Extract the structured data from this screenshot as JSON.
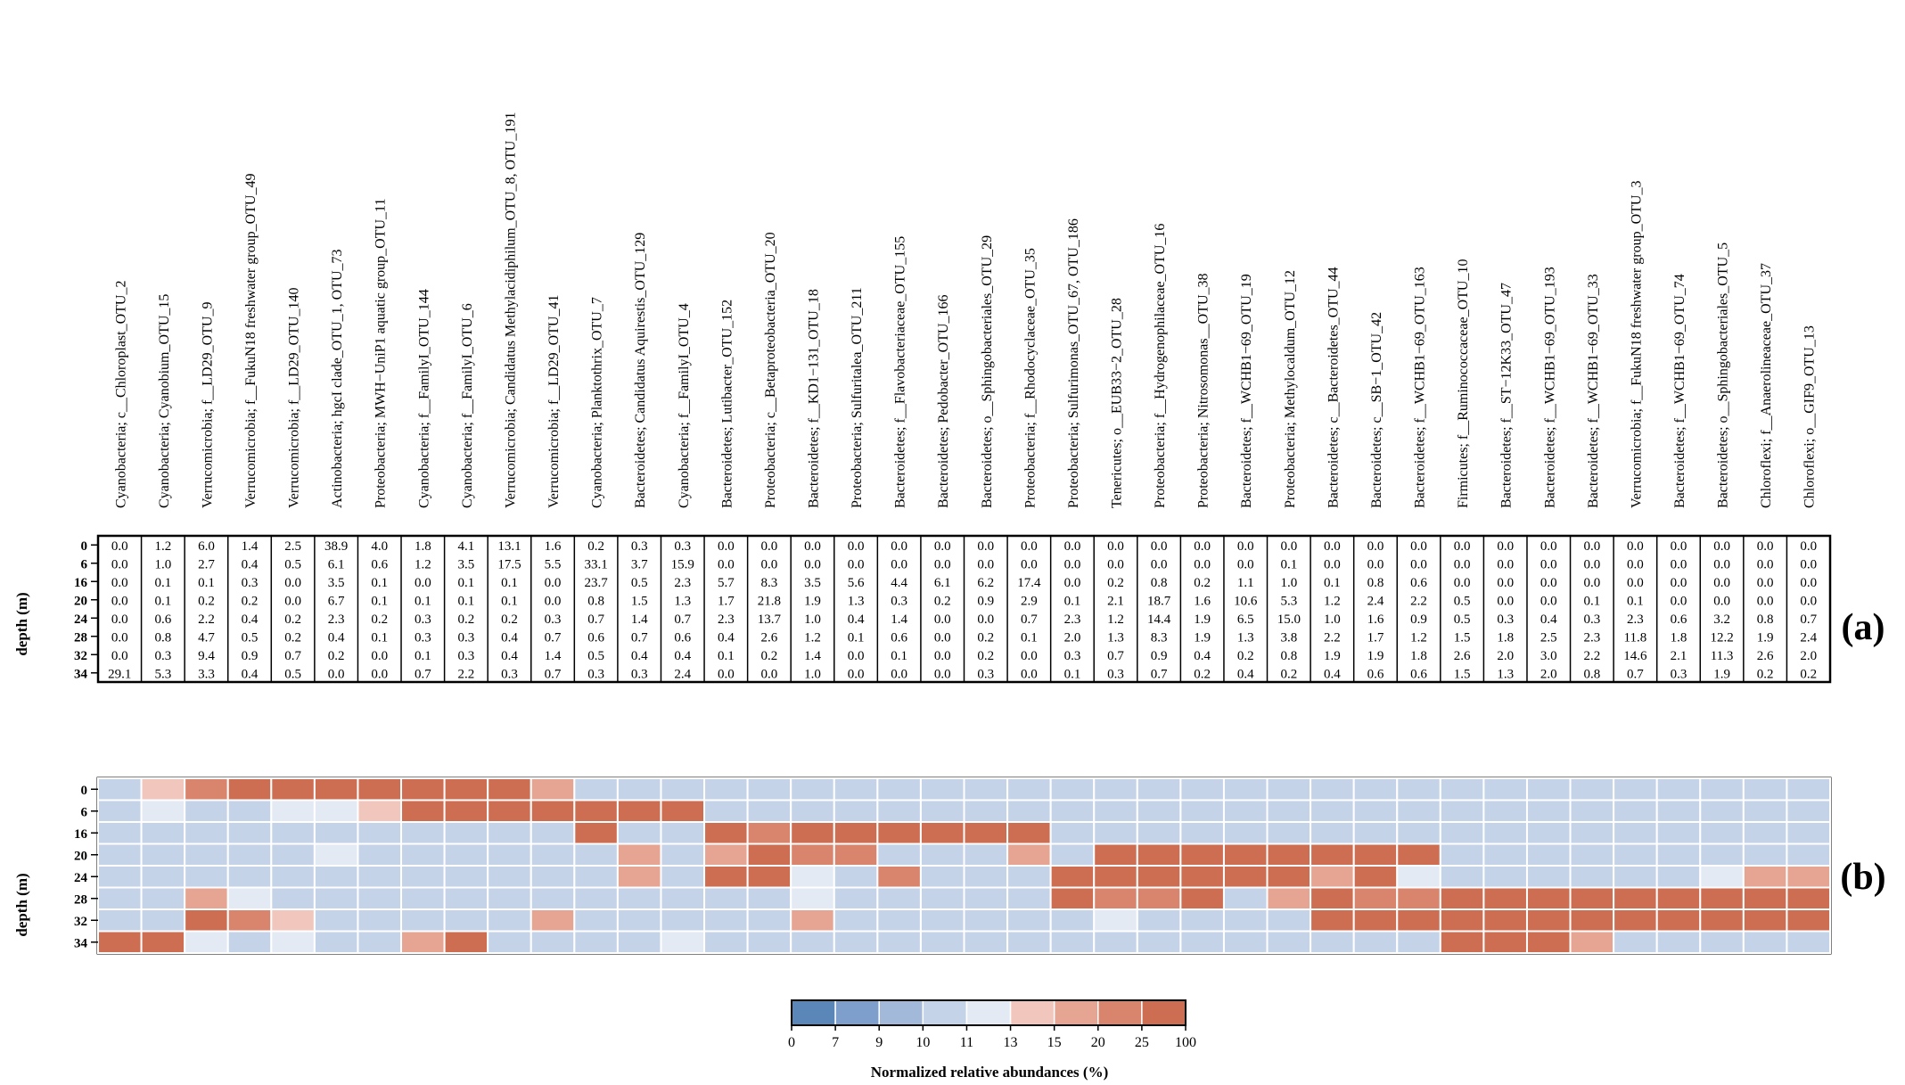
{
  "chart_data": [
    {
      "type": "table",
      "panel_label": "(a)",
      "ylabel": "depth (m)",
      "rows": [
        "0",
        "6",
        "16",
        "20",
        "24",
        "28",
        "32",
        "34"
      ],
      "columns": [
        "Cyanobacteria; c__Chloroplast_OTU_2",
        "Cyanobacteria; Cyanobium_OTU_15",
        "Verrucomicrobia; f__LD29_OTU_9",
        "Verrucomicrobia; f__FukuN18 freshwater group_OTU_49",
        "Verrucomicrobia; f__LD29_OTU_140",
        "Actinobacteria; hgcI clade_OTU_1, OTU_73",
        "Proteobacteria; MWH−UniP1 aquatic group_OTU_11",
        "Cyanobacteria; f__FamilyI_OTU_144",
        "Cyanobacteria; f__FamilyI_OTU_6",
        "Verrucomicrobia; Candidatus Methylacidiphilum_OTU_8, OTU_191",
        "Verrucomicrobia; f__LD29_OTU_41",
        "Cyanobacteria; Planktothrix_OTU_7",
        "Bacteroidetes; Candidatus Aquirestis_OTU_129",
        "Cyanobacteria; f__FamilyI_OTU_4",
        "Bacteroidetes; Lutibacter_OTU_152",
        "Proteobacteria; c__Betaproteobacteria_OTU_20",
        "Bacteroidetes; f__KD1−131_OTU_18",
        "Proteobacteria; Sulfuritalea_OTU_211",
        "Bacteroidetes; f__Flavobacteriaceae_OTU_155",
        "Bacteroidetes; Pedobacter_OTU_166",
        "Bacteroidetes; o__Sphingobacteriales_OTU_29",
        "Proteobacteria; f__Rhodocyclaceae_OTU_35",
        "Proteobacteria; Sulfurimonas_OTU_67, OTU_186",
        "Tenericutes; o__EUB33−2_OTU_28",
        "Proteobacteria; f__Hydrogenophilaceae_OTU_16",
        "Proteobacteria; Nitrosomonas__OTU_38",
        "Bacteroidetes; f__WCHB1−69_OTU_19",
        "Proteobacteria; Methylocaldum_OTU_12",
        "Bacteroidetes; c__Bacteroidetes_OTU_44",
        "Bacteroidetes; c__SB−1_OTU_42",
        "Bacteroidetes; f__WCHB1−69_OTU_163",
        "Firmicutes; f__Ruminococcaceae_OTU_10",
        "Bacteroidetes; f__ST−12K33_OTU_47",
        "Bacteroidetes; f__WCHB1−69_OTU_193",
        "Bacteroidetes; f__WCHB1−69_OTU_33",
        "Verrucomicrobia; f__FukuN18 freshwater group_OTU_3",
        "Bacteroidetes; f__WCHB1−69_OTU_74",
        "Bacteroidetes; o__Sphingobacteriales_OTU_5",
        "Chloroflexi; f__Anaerolineaceae_OTU_37",
        "Chloroflexi; o__GIF9_OTU_13"
      ],
      "values": [
        [
          "0.0",
          "1.2",
          "6.0",
          "1.4",
          "2.5",
          "38.9",
          "4.0",
          "1.8",
          "4.1",
          "13.1",
          "1.6",
          "0.2",
          "0.3",
          "0.3",
          "0.0",
          "0.0",
          "0.0",
          "0.0",
          "0.0",
          "0.0",
          "0.0",
          "0.0",
          "0.0",
          "0.0",
          "0.0",
          "0.0",
          "0.0",
          "0.0",
          "0.0",
          "0.0",
          "0.0",
          "0.0",
          "0.0",
          "0.0",
          "0.0",
          "0.0",
          "0.0",
          "0.0",
          "0.0",
          "0.0"
        ],
        [
          "0.0",
          "1.0",
          "2.7",
          "0.4",
          "0.5",
          "6.1",
          "0.6",
          "1.2",
          "3.5",
          "17.5",
          "5.5",
          "33.1",
          "3.7",
          "15.9",
          "0.0",
          "0.0",
          "0.0",
          "0.0",
          "0.0",
          "0.0",
          "0.0",
          "0.0",
          "0.0",
          "0.0",
          "0.0",
          "0.0",
          "0.0",
          "0.1",
          "0.0",
          "0.0",
          "0.0",
          "0.0",
          "0.0",
          "0.0",
          "0.0",
          "0.0",
          "0.0",
          "0.0",
          "0.0",
          "0.0"
        ],
        [
          "0.0",
          "0.1",
          "0.1",
          "0.3",
          "0.0",
          "3.5",
          "0.1",
          "0.0",
          "0.1",
          "0.1",
          "0.0",
          "23.7",
          "0.5",
          "2.3",
          "5.7",
          "8.3",
          "3.5",
          "5.6",
          "4.4",
          "6.1",
          "6.2",
          "17.4",
          "0.0",
          "0.2",
          "0.8",
          "0.2",
          "1.1",
          "1.0",
          "0.1",
          "0.8",
          "0.6",
          "0.0",
          "0.0",
          "0.0",
          "0.0",
          "0.0",
          "0.0",
          "0.0",
          "0.0",
          "0.0"
        ],
        [
          "0.0",
          "0.1",
          "0.2",
          "0.2",
          "0.0",
          "6.7",
          "0.1",
          "0.1",
          "0.1",
          "0.1",
          "0.0",
          "0.8",
          "1.5",
          "1.3",
          "1.7",
          "21.8",
          "1.9",
          "1.3",
          "0.3",
          "0.2",
          "0.9",
          "2.9",
          "0.1",
          "2.1",
          "18.7",
          "1.6",
          "10.6",
          "5.3",
          "1.2",
          "2.4",
          "2.2",
          "0.5",
          "0.0",
          "0.0",
          "0.1",
          "0.1",
          "0.0",
          "0.0",
          "0.0",
          "0.0"
        ],
        [
          "0.0",
          "0.6",
          "2.2",
          "0.4",
          "0.2",
          "2.3",
          "0.2",
          "0.3",
          "0.2",
          "0.2",
          "0.3",
          "0.7",
          "1.4",
          "0.7",
          "2.3",
          "13.7",
          "1.0",
          "0.4",
          "1.4",
          "0.0",
          "0.0",
          "0.7",
          "2.3",
          "1.2",
          "14.4",
          "1.9",
          "6.5",
          "15.0",
          "1.0",
          "1.6",
          "0.9",
          "0.5",
          "0.3",
          "0.4",
          "0.3",
          "2.3",
          "0.6",
          "3.2",
          "0.8",
          "0.7"
        ],
        [
          "0.0",
          "0.8",
          "4.7",
          "0.5",
          "0.2",
          "0.4",
          "0.1",
          "0.3",
          "0.3",
          "0.4",
          "0.7",
          "0.6",
          "0.7",
          "0.6",
          "0.4",
          "2.6",
          "1.2",
          "0.1",
          "0.6",
          "0.0",
          "0.2",
          "0.1",
          "2.0",
          "1.3",
          "8.3",
          "1.9",
          "1.3",
          "3.8",
          "2.2",
          "1.7",
          "1.2",
          "1.5",
          "1.8",
          "2.5",
          "2.3",
          "11.8",
          "1.8",
          "12.2",
          "1.9",
          "2.4"
        ],
        [
          "0.0",
          "0.3",
          "9.4",
          "0.9",
          "0.7",
          "0.2",
          "0.0",
          "0.1",
          "0.3",
          "0.4",
          "1.4",
          "0.5",
          "0.4",
          "0.4",
          "0.1",
          "0.2",
          "1.4",
          "0.0",
          "0.1",
          "0.0",
          "0.2",
          "0.0",
          "0.3",
          "0.7",
          "0.9",
          "0.4",
          "0.2",
          "0.8",
          "1.9",
          "1.9",
          "1.8",
          "2.6",
          "2.0",
          "3.0",
          "2.2",
          "14.6",
          "2.1",
          "11.3",
          "2.6",
          "2.0"
        ],
        [
          "29.1",
          "5.3",
          "3.3",
          "0.4",
          "0.5",
          "0.0",
          "0.0",
          "0.7",
          "2.2",
          "0.3",
          "0.7",
          "0.3",
          "0.3",
          "2.4",
          "0.0",
          "0.0",
          "1.0",
          "0.0",
          "0.0",
          "0.0",
          "0.3",
          "0.0",
          "0.1",
          "0.3",
          "0.7",
          "0.2",
          "0.4",
          "0.2",
          "0.4",
          "0.6",
          "0.6",
          "1.5",
          "1.3",
          "2.0",
          "0.8",
          "0.7",
          "0.3",
          "1.9",
          "0.2",
          "0.2"
        ]
      ]
    },
    {
      "type": "heatmap",
      "panel_label": "(b)",
      "ylabel": "depth (m)",
      "rows": [
        "0",
        "6",
        "16",
        "20",
        "24",
        "28",
        "32",
        "34"
      ],
      "color_levels": [
        [
          3,
          5,
          7,
          8,
          8,
          8,
          8,
          8,
          8,
          8,
          6,
          3,
          3,
          3,
          3,
          3,
          3,
          3,
          3,
          3,
          3,
          3,
          3,
          3,
          3,
          3,
          3,
          3,
          3,
          3,
          3,
          3,
          3,
          3,
          3,
          3,
          3,
          3,
          3,
          3
        ],
        [
          3,
          4,
          3,
          3,
          4,
          4,
          5,
          8,
          8,
          8,
          8,
          8,
          8,
          8,
          3,
          3,
          3,
          3,
          3,
          3,
          3,
          3,
          3,
          3,
          3,
          3,
          3,
          3,
          3,
          3,
          3,
          3,
          3,
          3,
          3,
          3,
          3,
          3,
          3,
          3
        ],
        [
          3,
          3,
          3,
          3,
          3,
          3,
          3,
          3,
          3,
          3,
          3,
          8,
          3,
          3,
          8,
          7,
          8,
          8,
          8,
          8,
          8,
          8,
          3,
          3,
          3,
          3,
          3,
          3,
          3,
          3,
          3,
          3,
          3,
          3,
          3,
          3,
          3,
          3,
          3,
          3
        ],
        [
          3,
          3,
          3,
          3,
          3,
          4,
          3,
          3,
          3,
          3,
          3,
          3,
          6,
          3,
          6,
          8,
          7,
          7,
          3,
          3,
          3,
          6,
          3,
          8,
          8,
          8,
          8,
          8,
          8,
          8,
          8,
          3,
          3,
          3,
          3,
          3,
          3,
          3,
          3,
          3
        ],
        [
          3,
          3,
          3,
          3,
          3,
          3,
          3,
          3,
          3,
          3,
          3,
          3,
          6,
          3,
          8,
          8,
          4,
          3,
          7,
          3,
          3,
          3,
          8,
          8,
          8,
          8,
          8,
          8,
          6,
          8,
          4,
          3,
          3,
          3,
          3,
          3,
          3,
          4,
          6,
          6
        ],
        [
          3,
          3,
          6,
          4,
          3,
          3,
          3,
          3,
          3,
          3,
          3,
          3,
          3,
          3,
          3,
          3,
          4,
          3,
          3,
          3,
          3,
          3,
          8,
          7,
          7,
          8,
          3,
          6,
          8,
          7,
          7,
          8,
          8,
          8,
          8,
          8,
          8,
          8,
          8,
          8
        ],
        [
          3,
          3,
          8,
          7,
          5,
          3,
          3,
          3,
          3,
          3,
          6,
          3,
          3,
          3,
          3,
          3,
          6,
          3,
          3,
          3,
          3,
          3,
          3,
          4,
          3,
          3,
          3,
          3,
          8,
          8,
          8,
          8,
          8,
          8,
          8,
          8,
          8,
          8,
          8,
          8
        ],
        [
          8,
          8,
          4,
          3,
          4,
          3,
          3,
          6,
          8,
          3,
          3,
          3,
          3,
          4,
          3,
          3,
          3,
          3,
          3,
          3,
          3,
          3,
          3,
          3,
          3,
          3,
          3,
          3,
          3,
          3,
          3,
          8,
          8,
          8,
          6,
          3,
          3,
          3,
          3,
          3
        ]
      ]
    }
  ],
  "legend": {
    "title": "Normalized relative abundances (%)",
    "ticks": [
      "0",
      "7",
      "9",
      "10",
      "11",
      "13",
      "15",
      "20",
      "25",
      "100"
    ],
    "colors": [
      "#5b86b8",
      "#7e9ecb",
      "#a3b9d9",
      "#c5d3e8",
      "#e4eaf4",
      "#f1c6bc",
      "#e6a593",
      "#d9846c",
      "#cd6e52"
    ]
  }
}
